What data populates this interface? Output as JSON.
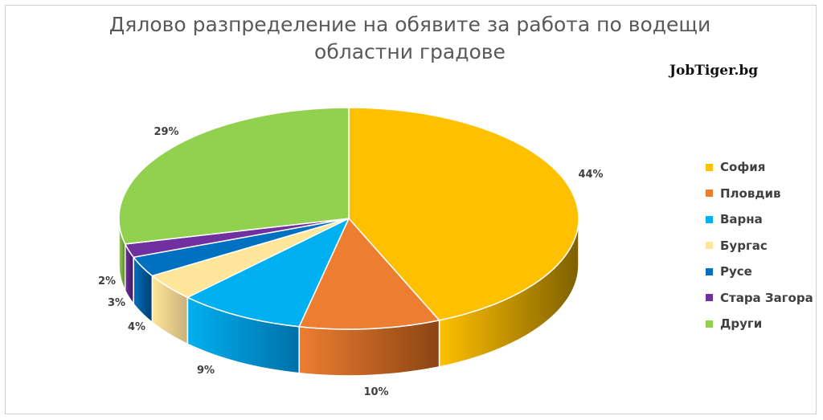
{
  "chart_data": {
    "type": "pie",
    "title": "Дялово разпределение на обявите за работа по водещи областни градове",
    "watermark": "JobTiger.bg",
    "legend_position": "right",
    "series": [
      {
        "name": "София",
        "value": 44,
        "label": "44%",
        "color": "#FFC000",
        "side": "#7F6000"
      },
      {
        "name": "Пловдив",
        "value": 10,
        "label": "10%",
        "color": "#ED7D31",
        "side": "#8B4513"
      },
      {
        "name": "Варна",
        "value": 9,
        "label": "9%",
        "color": "#00B0F0",
        "side": "#0070A8"
      },
      {
        "name": "Бургас",
        "value": 4,
        "label": "4%",
        "color": "#FFE699",
        "side": "#C9B07A"
      },
      {
        "name": "Русе",
        "value": 3,
        "label": "3%",
        "color": "#0070C0",
        "side": "#003F70"
      },
      {
        "name": "Стара Загора",
        "value": 2,
        "label": "2%",
        "color": "#7030A0",
        "side": "#3E1A5A"
      },
      {
        "name": "Други",
        "value": 29,
        "label": "29%",
        "color": "#92D050",
        "side": "#5A8A2A"
      }
    ]
  }
}
